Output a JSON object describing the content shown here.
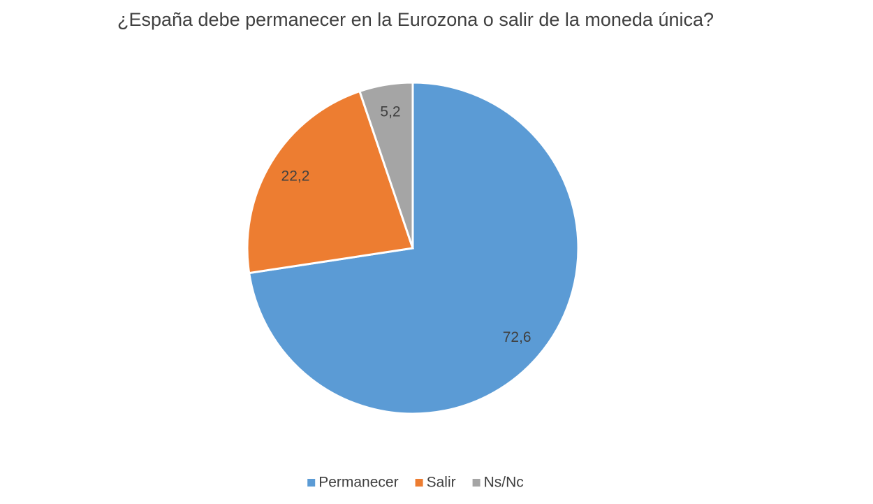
{
  "chart_data": {
    "type": "pie",
    "title": "¿España debe permanecer en la Eurozona o salir de la moneda única?",
    "categories": [
      "Permanecer",
      "Salir",
      "Ns/Nc"
    ],
    "values": [
      72.6,
      22.2,
      5.2
    ],
    "value_labels": [
      "72,6",
      "22,2",
      "5,2"
    ],
    "colors": [
      "#5b9bd5",
      "#ed7d31",
      "#a5a5a5"
    ],
    "legend": "bottom"
  }
}
